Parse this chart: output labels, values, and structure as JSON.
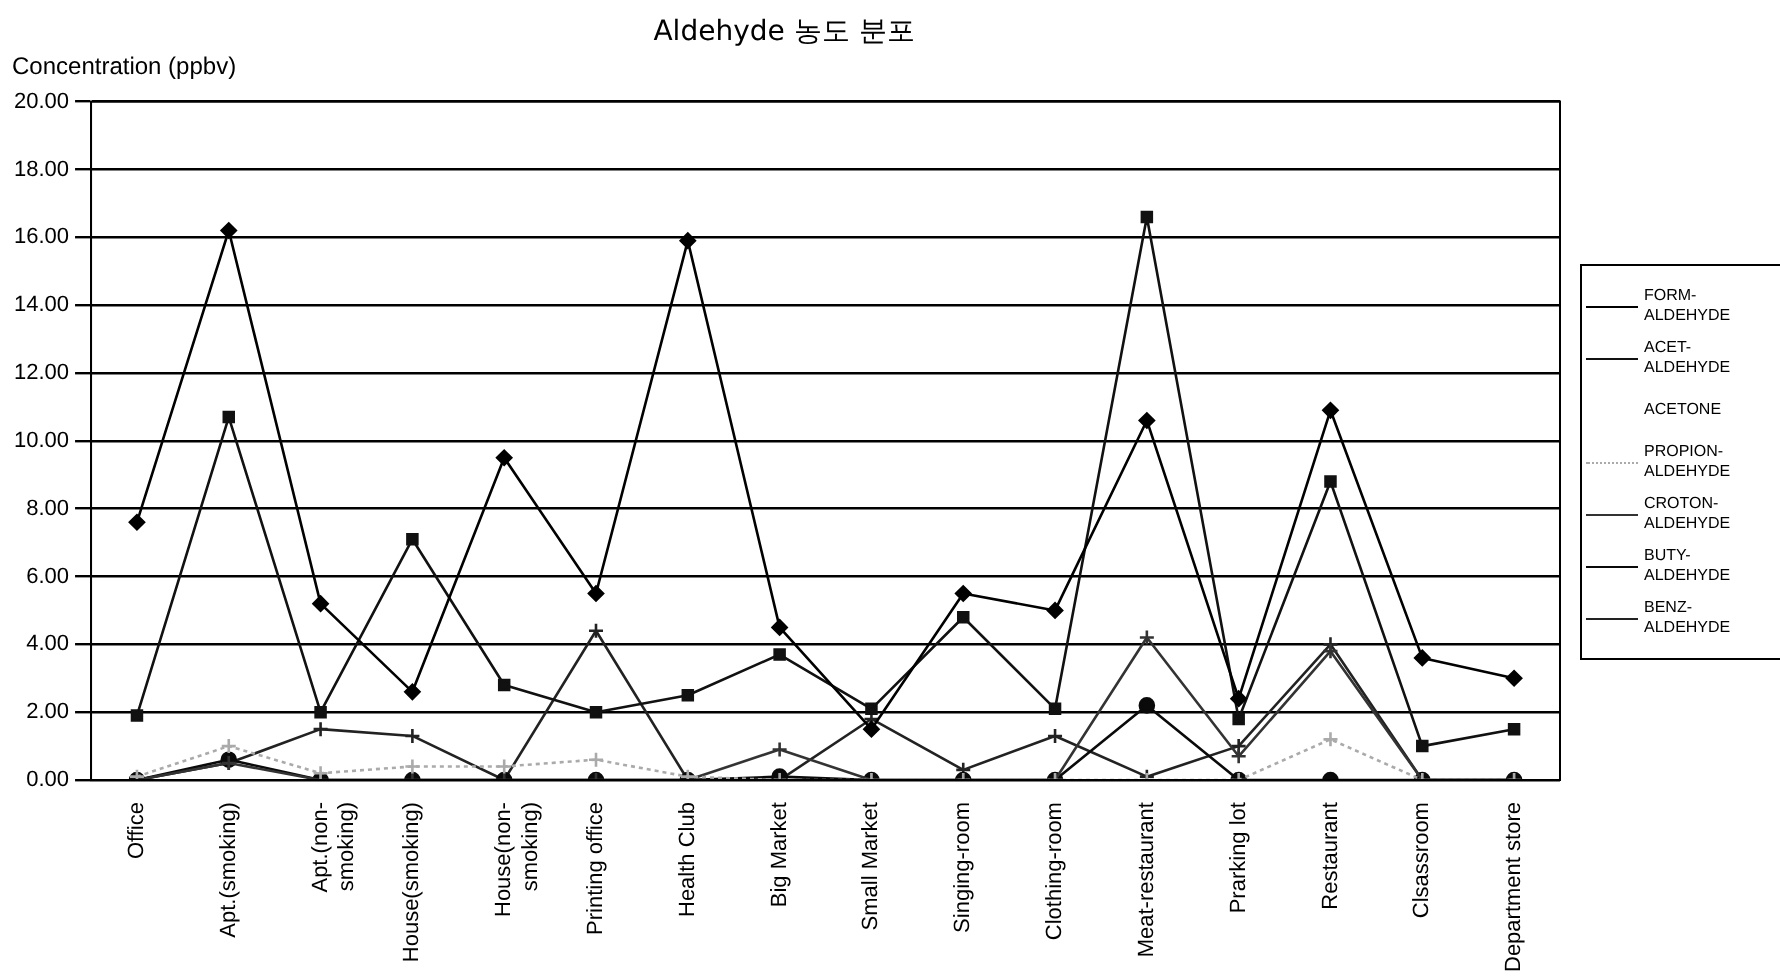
{
  "chart_data": {
    "type": "line",
    "title": "Aldehyde 농도 분포",
    "ylabel": "Concentration (ppbv)",
    "categories": [
      "Office",
      "Apt.(smoking)",
      "Apt.(non-\nsmoking)",
      "House(smoking)",
      "House(non-\nsmoking)",
      "Printing office",
      "Health Club",
      "Big Market",
      "Small Market",
      "Singing-room",
      "Clothing-room",
      "Meat-restaurant",
      "Prarking lot",
      "Restaurant",
      "Clsassroom",
      "Department store"
    ],
    "series": [
      {
        "name": "FORM-\nALDEHYDE",
        "color": "#000000",
        "marker": "diamond",
        "values": [
          7.6,
          16.2,
          5.2,
          2.6,
          9.5,
          5.5,
          15.9,
          4.5,
          1.5,
          5.5,
          5.0,
          10.6,
          2.4,
          10.9,
          3.6,
          3.0
        ]
      },
      {
        "name": "ACET-\nALDEHYDE",
        "color": "#111111",
        "marker": "square",
        "values": [
          1.9,
          10.7,
          2.0,
          7.1,
          2.8,
          2.0,
          2.5,
          3.7,
          2.1,
          4.8,
          2.1,
          16.6,
          1.8,
          8.8,
          1.0,
          1.5
        ]
      },
      {
        "name": "ACETONE",
        "marker": "none",
        "values": [
          null,
          null,
          null,
          null,
          null,
          null,
          null,
          null,
          null,
          null,
          null,
          null,
          null,
          null,
          null,
          null
        ]
      },
      {
        "name": "PROPION-\nALDEHYDE",
        "color": "#aaaaaa",
        "marker": "cross",
        "line_style": "dotted",
        "values": [
          0.1,
          1.0,
          0.2,
          0.4,
          0.4,
          0.6,
          0.1,
          0.0,
          0.0,
          0.0,
          0.0,
          0.0,
          0.0,
          1.2,
          0.0,
          0.0
        ]
      },
      {
        "name": "CROTON-\nALDEHYDE",
        "color": "#333333",
        "marker": "cross",
        "values": [
          0.0,
          0.5,
          0.0,
          0.0,
          0.0,
          0.0,
          0.0,
          0.9,
          0.0,
          0.0,
          0.0,
          4.2,
          0.7,
          3.8,
          0.0,
          0.0
        ]
      },
      {
        "name": "BUTY-\nALDEHYDE",
        "color": "#0a0a0a",
        "marker": "circle",
        "values": [
          0.0,
          0.6,
          0.0,
          0.0,
          0.0,
          0.0,
          0.0,
          0.1,
          0.0,
          0.0,
          0.0,
          2.2,
          0.0,
          0.0,
          0.0,
          0.0
        ]
      },
      {
        "name": "BENZ-\nALDEHYDE",
        "color": "#222222",
        "marker": "cross",
        "values": [
          0.0,
          0.5,
          1.5,
          1.3,
          0.0,
          4.4,
          0.0,
          0.0,
          1.8,
          0.3,
          1.3,
          0.1,
          1.0,
          4.0,
          0.0,
          0.0
        ]
      }
    ],
    "ylim": [
      0,
      20
    ],
    "yticks": [
      {
        "value": 0,
        "label": "0.00"
      },
      {
        "value": 2,
        "label": "2.00"
      },
      {
        "value": 4,
        "label": "4.00"
      },
      {
        "value": 6,
        "label": "6.00"
      },
      {
        "value": 8,
        "label": "8.00"
      },
      {
        "value": 10,
        "label": "10.00"
      },
      {
        "value": 12,
        "label": "12.00"
      },
      {
        "value": 14,
        "label": "14.00"
      },
      {
        "value": 16,
        "label": "16.00"
      },
      {
        "value": 18,
        "label": "18.00"
      },
      {
        "value": 20,
        "label": "20.00"
      }
    ],
    "grid": "y",
    "legend": "right",
    "line_style": "solid"
  }
}
